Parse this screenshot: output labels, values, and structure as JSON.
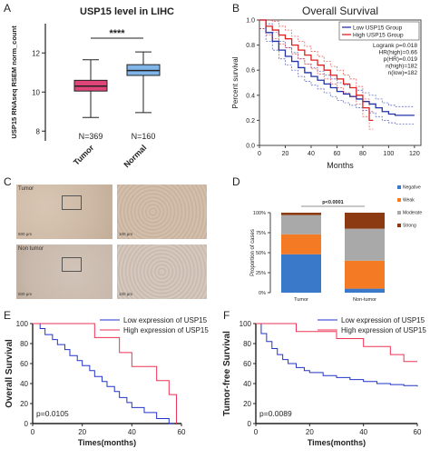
{
  "panels": {
    "A": {
      "label": "A",
      "chart_data": {
        "type": "box",
        "title": "USP15 level in LIHC",
        "ylabel": "USP15 RNAseq RSEM norm_count",
        "ylim": [
          7.5,
          13.5
        ],
        "yticks": [
          8,
          10,
          12
        ],
        "significance": "****",
        "categories": [
          "Tumor",
          "Normal"
        ],
        "series": [
          {
            "name": "Tumor",
            "n_label": "N=369",
            "color": "#e0457a",
            "min": 8.7,
            "q1": 10.05,
            "median": 10.3,
            "q3": 10.6,
            "max": 11.65
          },
          {
            "name": "Normal",
            "n_label": "N=160",
            "color": "#7fb5e8",
            "min": 8.95,
            "q1": 10.85,
            "median": 11.1,
            "q3": 11.4,
            "max": 12.05
          }
        ]
      }
    },
    "B": {
      "label": "B",
      "chart_data": {
        "type": "line",
        "title": "Overall Survival",
        "xlabel": "Months",
        "ylabel": "Percent survival",
        "xlim": [
          0,
          125
        ],
        "ylim": [
          0,
          1.0
        ],
        "xticks": [
          0,
          20,
          40,
          60,
          80,
          100,
          120
        ],
        "yticks": [
          0.0,
          0.2,
          0.4,
          0.6,
          0.8,
          1.0
        ],
        "legend": [
          "Low USP15 Group",
          "High USP15 Group"
        ],
        "stats": [
          "Logrank p=0.018",
          "HR(high)=0.66",
          "p(HR)=0.019",
          "n(high)=182",
          "n(low)=182"
        ],
        "series": [
          {
            "name": "Low USP15 Group",
            "color": "#2233aa",
            "x": [
              0,
              5,
              10,
              15,
              20,
              25,
              30,
              35,
              40,
              45,
              50,
              55,
              60,
              65,
              70,
              75,
              80,
              85,
              90,
              95,
              100,
              105,
              110,
              120
            ],
            "y": [
              1.0,
              0.9,
              0.83,
              0.76,
              0.71,
              0.67,
              0.62,
              0.58,
              0.55,
              0.52,
              0.49,
              0.46,
              0.43,
              0.41,
              0.39,
              0.37,
              0.35,
              0.33,
              0.3,
              0.27,
              0.25,
              0.24,
              0.24,
              0.24
            ]
          },
          {
            "name": "High USP15 Group",
            "color": "#dd2222",
            "x": [
              0,
              5,
              10,
              15,
              20,
              25,
              30,
              35,
              40,
              45,
              50,
              55,
              60,
              65,
              70,
              75,
              80,
              85,
              88
            ],
            "y": [
              1.0,
              0.95,
              0.92,
              0.88,
              0.85,
              0.8,
              0.76,
              0.72,
              0.68,
              0.64,
              0.6,
              0.56,
              0.53,
              0.49,
              0.46,
              0.4,
              0.3,
              0.2,
              0.2
            ]
          }
        ]
      }
    },
    "C": {
      "label": "C",
      "rows": [
        {
          "name": "Tumor",
          "scale_low": "500 μm",
          "scale_high": "100 μm"
        },
        {
          "name": "Non tumor",
          "scale_low": "500 μm",
          "scale_high": "100 μm"
        }
      ]
    },
    "D": {
      "label": "D",
      "chart_data": {
        "type": "bar",
        "stacked": true,
        "ylabel": "Proportion of cases",
        "ylim": [
          0,
          100
        ],
        "yticks": [
          "0%",
          "25%",
          "50%",
          "75%",
          "100%"
        ],
        "categories": [
          "Tumor",
          "Non-tumor"
        ],
        "pvalue": "p<0.0001",
        "series": [
          {
            "name": "Negative",
            "color": "#3a78c9",
            "values": [
              48,
              5
            ]
          },
          {
            "name": "Weak",
            "color": "#f47a23",
            "values": [
              25,
              35
            ]
          },
          {
            "name": "Moderate",
            "color": "#a9a9a9",
            "values": [
              24,
              40
            ]
          },
          {
            "name": "Strong",
            "color": "#8b3a12",
            "values": [
              3,
              20
            ]
          }
        ]
      }
    },
    "E": {
      "label": "E",
      "chart_data": {
        "type": "line",
        "xlabel": "Times(months)",
        "ylabel": "Overall Survival",
        "xlim": [
          0,
          60
        ],
        "ylim": [
          0,
          100
        ],
        "xticks": [
          0,
          20,
          40,
          60
        ],
        "yticks": [
          0,
          20,
          40,
          60,
          80,
          100
        ],
        "pvalue": "p=0.0105",
        "series": [
          {
            "name": "Low expression of USP15",
            "color": "#2233cc",
            "x": [
              0,
              3,
              5,
              8,
              10,
              13,
              15,
              18,
              20,
              23,
              25,
              28,
              30,
              33,
              35,
              38,
              40,
              43,
              45,
              48,
              50,
              53,
              55,
              57
            ],
            "y": [
              100,
              95,
              89,
              84,
              79,
              74,
              68,
              63,
              58,
              53,
              47,
              42,
              37,
              32,
              26,
              21,
              16,
              16,
              11,
              11,
              5,
              5,
              0,
              0
            ]
          },
          {
            "name": "High expression of USP15",
            "color": "#ee3355",
            "x": [
              0,
              20,
              25,
              30,
              35,
              40,
              45,
              50,
              55,
              58
            ],
            "y": [
              100,
              100,
              86,
              86,
              71,
              57,
              57,
              43,
              29,
              0
            ]
          }
        ]
      }
    },
    "F": {
      "label": "F",
      "chart_data": {
        "type": "line",
        "xlabel": "Times(months)",
        "ylabel": "Tumor-free Survival",
        "xlim": [
          0,
          60
        ],
        "ylim": [
          0,
          100
        ],
        "xticks": [
          0,
          20,
          40,
          60
        ],
        "yticks": [
          0,
          20,
          40,
          60,
          80,
          100
        ],
        "pvalue": "p=0.0089",
        "series": [
          {
            "name": "Low expression of USP15",
            "color": "#2233cc",
            "x": [
              0,
              2,
              4,
              6,
              8,
              10,
              12,
              15,
              18,
              20,
              25,
              30,
              35,
              40,
              45,
              50,
              55,
              60
            ],
            "y": [
              100,
              90,
              82,
              75,
              69,
              64,
              60,
              56,
              53,
              51,
              48,
              46,
              44,
              42,
              40,
              39,
              38,
              37
            ]
          },
          {
            "name": "High expression of USP15",
            "color": "#ee3355",
            "x": [
              0,
              10,
              15,
              25,
              30,
              35,
              40,
              45,
              50,
              55,
              60
            ],
            "y": [
              100,
              100,
              92,
              92,
              85,
              85,
              77,
              77,
              69,
              62,
              62
            ]
          }
        ]
      }
    }
  }
}
